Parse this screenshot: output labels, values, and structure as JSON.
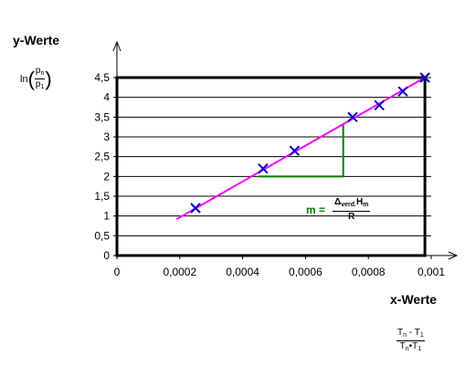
{
  "labels": {
    "y_axis": "y-Werte",
    "x_axis": "x-Werte",
    "ln_prefix": "ln",
    "ln_num": "p",
    "ln_num_sub": "n",
    "ln_den": "p",
    "ln_den_sub": "1",
    "x_num": "T",
    "x_num_sub1": "n",
    "x_num_mid": " - T",
    "x_num_sub2": "1",
    "x_den": "T",
    "x_den_sub1": "n",
    "x_den_mid": "•T",
    "x_den_sub2": "1",
    "slope_eq": "m =",
    "slope_num_a": "Δ",
    "slope_num_sub1": "verd.",
    "slope_num_b": "H",
    "slope_num_sub2": "m",
    "slope_den": "R"
  },
  "chart_data": {
    "type": "scatter",
    "xlim": [
      0,
      0.001
    ],
    "ylim": [
      0,
      4.5
    ],
    "x_ticks": [
      "0",
      "0,0002",
      "0,0004",
      "0,0006",
      "0,0008",
      "0,001"
    ],
    "y_ticks": [
      "0",
      "0,5",
      "1",
      "1,5",
      "2",
      "2,5",
      "3",
      "3,5",
      "4",
      "4,5"
    ],
    "grid": "horizontal",
    "series": [
      {
        "kind": "points",
        "marker": "x",
        "color": "#0000cc",
        "x": [
          0.00025,
          0.000465,
          0.000565,
          0.00075,
          0.000835,
          0.00091,
          0.00098
        ],
        "y": [
          1.2,
          2.2,
          2.65,
          3.5,
          3.8,
          4.15,
          4.5
        ]
      },
      {
        "kind": "regression-line",
        "color": "#ff00ff",
        "x": [
          0.00019,
          0.00098
        ],
        "y": [
          0.92,
          4.5
        ]
      }
    ],
    "slope_triangle": {
      "color": "#008000",
      "x0": 0.00045,
      "x1": 0.00072,
      "y0": 2.0,
      "y1": 3.35
    },
    "frame_box": {
      "x": [
        0,
        0.00098
      ],
      "y": [
        0,
        4.5
      ]
    }
  }
}
